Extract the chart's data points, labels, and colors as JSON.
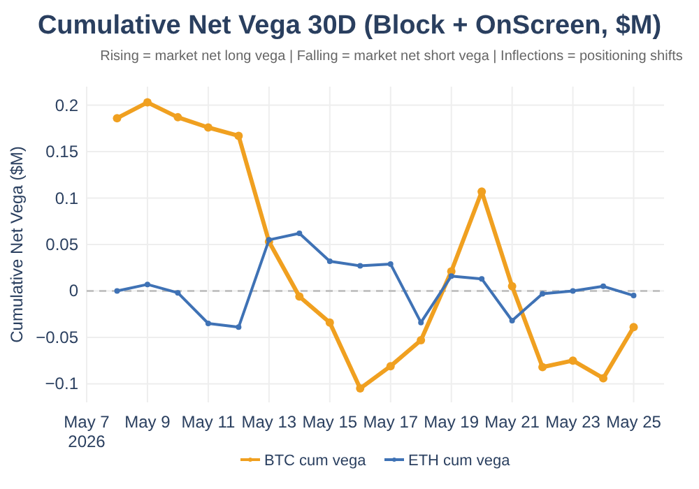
{
  "chart_data": {
    "type": "line",
    "title": "Cumulative Net Vega 30D (Block + OnScreen, $M)",
    "subtitle": "Rising = market net long vega | Falling = market net short vega | Inflections = positioning shifts",
    "ylabel": "Cumulative Net Vega ($M)",
    "x": [
      "2026-05-08",
      "2026-05-09",
      "2026-05-10",
      "2026-05-11",
      "2026-05-12",
      "2026-05-13",
      "2026-05-14",
      "2026-05-15",
      "2026-05-16",
      "2026-05-17",
      "2026-05-18",
      "2026-05-19",
      "2026-05-20",
      "2026-05-21",
      "2026-05-22",
      "2026-05-23",
      "2026-05-24",
      "2026-05-25"
    ],
    "series": [
      {
        "name": "BTC cum vega",
        "color": "#f0a020",
        "values": [
          0.186,
          0.203,
          0.187,
          0.176,
          0.167,
          0.053,
          -0.006,
          -0.034,
          -0.105,
          -0.081,
          -0.053,
          0.021,
          0.107,
          0.005,
          -0.082,
          -0.075,
          -0.094,
          -0.039
        ]
      },
      {
        "name": "ETH cum vega",
        "color": "#3f72b5",
        "values": [
          0,
          0.007,
          -0.002,
          -0.035,
          -0.039,
          0.055,
          0.062,
          0.032,
          0.027,
          0.029,
          -0.034,
          0.016,
          0.013,
          -0.032,
          -0.003,
          0,
          0.005,
          -0.005
        ]
      }
    ],
    "xlim": [
      "2026-05-07",
      "2026-05-26"
    ],
    "xticks": [
      {
        "value": "2026-05-07",
        "label": "May 7\n2026"
      },
      {
        "value": "2026-05-09",
        "label": "May 9"
      },
      {
        "value": "2026-05-11",
        "label": "May 11"
      },
      {
        "value": "2026-05-13",
        "label": "May 13"
      },
      {
        "value": "2026-05-15",
        "label": "May 15"
      },
      {
        "value": "2026-05-17",
        "label": "May 17"
      },
      {
        "value": "2026-05-19",
        "label": "May 19"
      },
      {
        "value": "2026-05-21",
        "label": "May 21"
      },
      {
        "value": "2026-05-23",
        "label": "May 23"
      },
      {
        "value": "2026-05-25",
        "label": "May 25"
      }
    ],
    "ylim": [
      -0.12,
      0.22
    ],
    "yticks": [
      -0.1,
      -0.05,
      0,
      0.05,
      0.1,
      0.15,
      0.2
    ],
    "ref_lines": [
      {
        "axis": "y",
        "value": 0,
        "color": "#bbbbbb",
        "line_style": "dashed"
      }
    ],
    "grid": true,
    "legend": "bottom",
    "marker": "circle",
    "line_style": "solid"
  }
}
